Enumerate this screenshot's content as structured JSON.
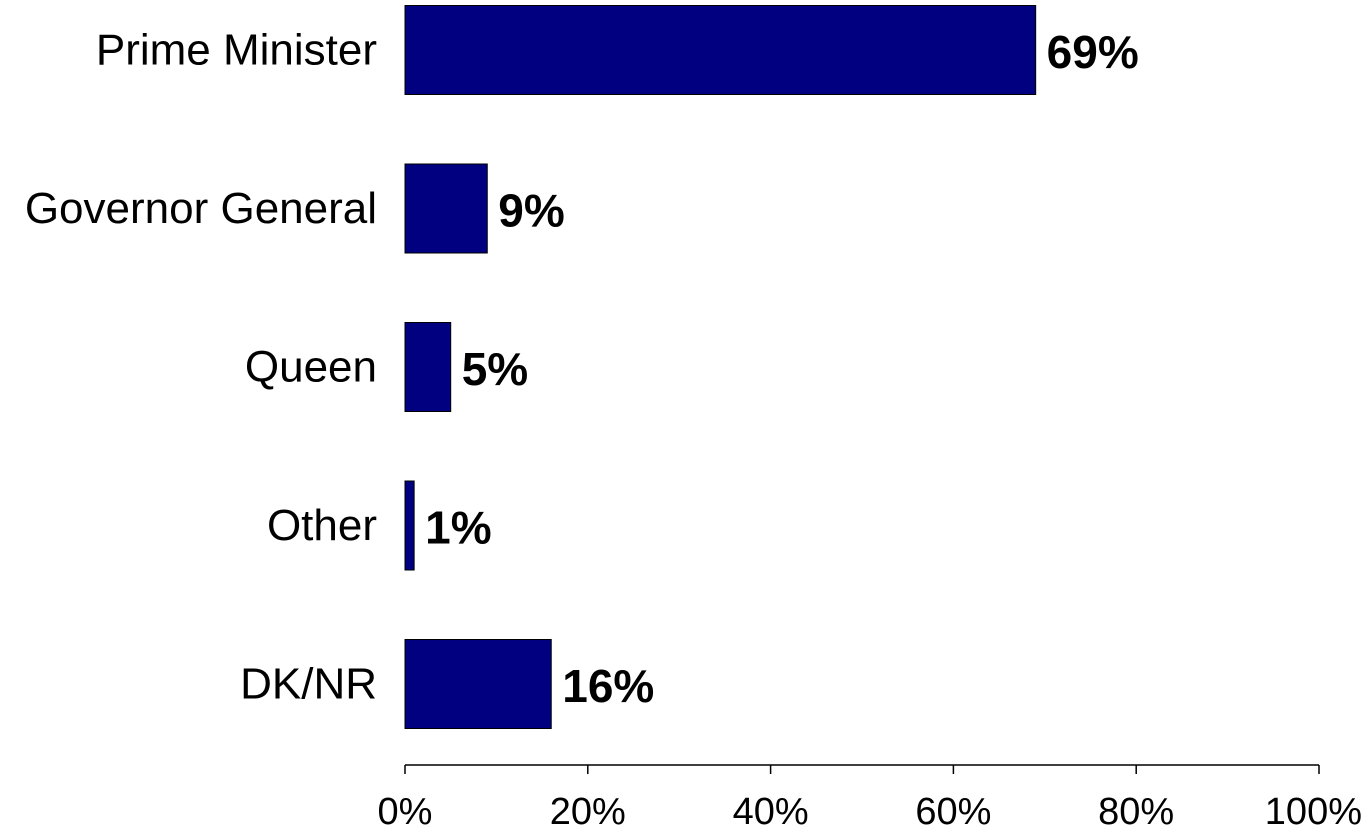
{
  "chart_data": {
    "type": "bar",
    "orientation": "horizontal",
    "categories": [
      "Prime Minister",
      "Governor General",
      "Queen",
      "Other",
      "DK/NR"
    ],
    "values": [
      69,
      9,
      5,
      1,
      16
    ],
    "value_labels": [
      "69%",
      "9%",
      "5%",
      "1%",
      "16%"
    ],
    "xlim": [
      0,
      100
    ],
    "x_ticks": [
      0,
      20,
      40,
      60,
      80,
      100
    ],
    "x_tick_labels": [
      "0%",
      "20%",
      "40%",
      "60%",
      "80%",
      "100%"
    ],
    "grid": false,
    "bar_color": "#000080"
  }
}
